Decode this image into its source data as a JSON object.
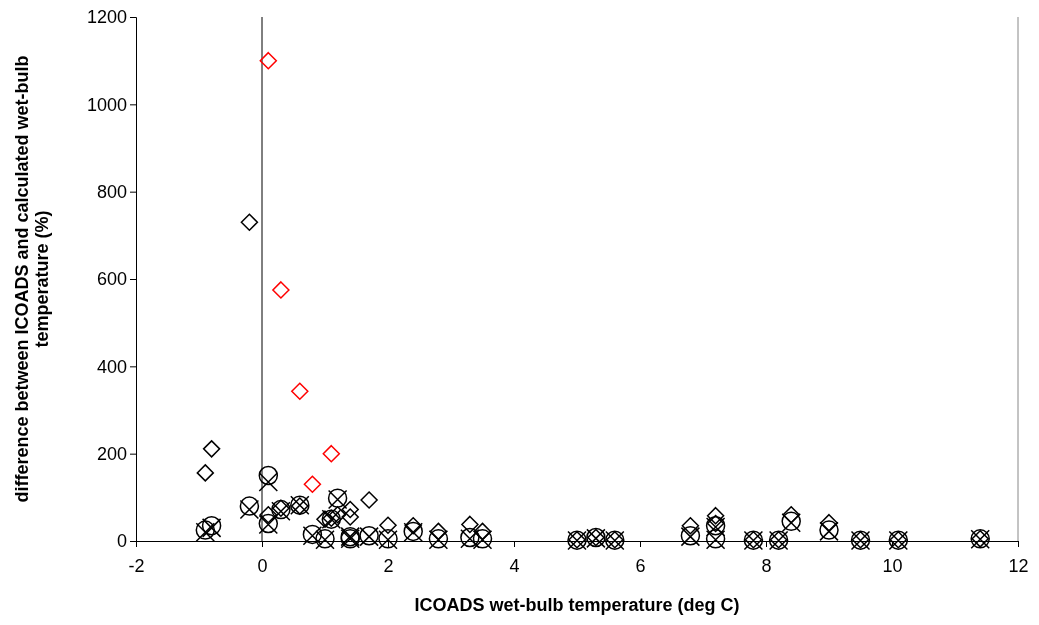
{
  "chart_data": {
    "type": "scatter",
    "xlabel": "ICOADS wet-bulb temperature (deg C)",
    "ylabel": "difference between ICOADS and calculated wet-bulb temperature (%)",
    "xlim": [
      -2,
      12
    ],
    "xticks": [
      -2,
      0,
      2,
      4,
      6,
      8,
      10,
      12
    ],
    "ylim": [
      0,
      1200
    ],
    "yticks": [
      0,
      200,
      400,
      600,
      800,
      1000,
      1200
    ],
    "grid": false,
    "ref_lines": [
      {
        "axis": "x",
        "value": 0,
        "color": "#000000"
      }
    ],
    "series": [
      {
        "color": "#000000",
        "marker": "diamond",
        "x": [
          -0.9,
          -0.8,
          -0.2,
          0.1,
          0.3,
          0.6,
          1.0,
          1.1,
          1.2,
          1.4,
          1.4,
          1.7,
          2.0,
          2.4,
          2.8,
          3.3,
          3.5,
          5.0,
          5.3,
          5.6,
          6.8,
          7.2,
          7.2,
          7.8,
          8.2,
          8.4,
          9.0,
          9.5,
          10.1,
          11.4
        ],
        "values": [
          156,
          211,
          730,
          60,
          75,
          80,
          50,
          52,
          60,
          72,
          55,
          94,
          36,
          35,
          22,
          38,
          22,
          3,
          8,
          3,
          35,
          58,
          40,
          3,
          3,
          60,
          42,
          3,
          3,
          5
        ]
      },
      {
        "color": "#ff0000",
        "marker": "diamond",
        "x": [
          0.1,
          0.3,
          0.6,
          0.8,
          1.1
        ],
        "values": [
          1100,
          575,
          343,
          130,
          200
        ]
      },
      {
        "color": "#000000",
        "marker": "circle",
        "x": [
          -0.9,
          -0.8,
          -0.2,
          0.1,
          0.1,
          0.3,
          0.6,
          0.8,
          1.0,
          1.1,
          1.2,
          1.4,
          1.4,
          1.7,
          2.0,
          2.4,
          2.8,
          3.3,
          3.5,
          5.0,
          5.3,
          5.6,
          6.8,
          7.2,
          7.2,
          7.8,
          8.2,
          8.4,
          9.0,
          9.5,
          10.1,
          11.4
        ],
        "values": [
          25,
          35,
          80,
          150,
          40,
          72,
          82,
          15,
          5,
          50,
          98,
          10,
          5,
          12,
          5,
          22,
          5,
          8,
          5,
          2,
          8,
          2,
          12,
          35,
          5,
          2,
          2,
          45,
          25,
          2,
          2,
          5
        ]
      },
      {
        "color": "#000000",
        "marker": "cross",
        "x": [
          -0.9,
          -0.8,
          -0.2,
          0.1,
          0.1,
          0.3,
          0.6,
          0.8,
          1.0,
          1.1,
          1.2,
          1.4,
          1.4,
          1.7,
          2.0,
          2.4,
          2.8,
          3.3,
          3.5,
          5.0,
          5.3,
          5.6,
          6.8,
          7.2,
          7.2,
          7.8,
          8.2,
          8.4,
          9.0,
          9.5,
          10.1,
          11.4
        ],
        "values": [
          20,
          30,
          72,
          135,
          38,
          68,
          82,
          12,
          3,
          50,
          95,
          10,
          5,
          10,
          3,
          20,
          3,
          5,
          3,
          1,
          6,
          1,
          10,
          32,
          3,
          1,
          1,
          42,
          22,
          1,
          1,
          4
        ]
      }
    ]
  }
}
